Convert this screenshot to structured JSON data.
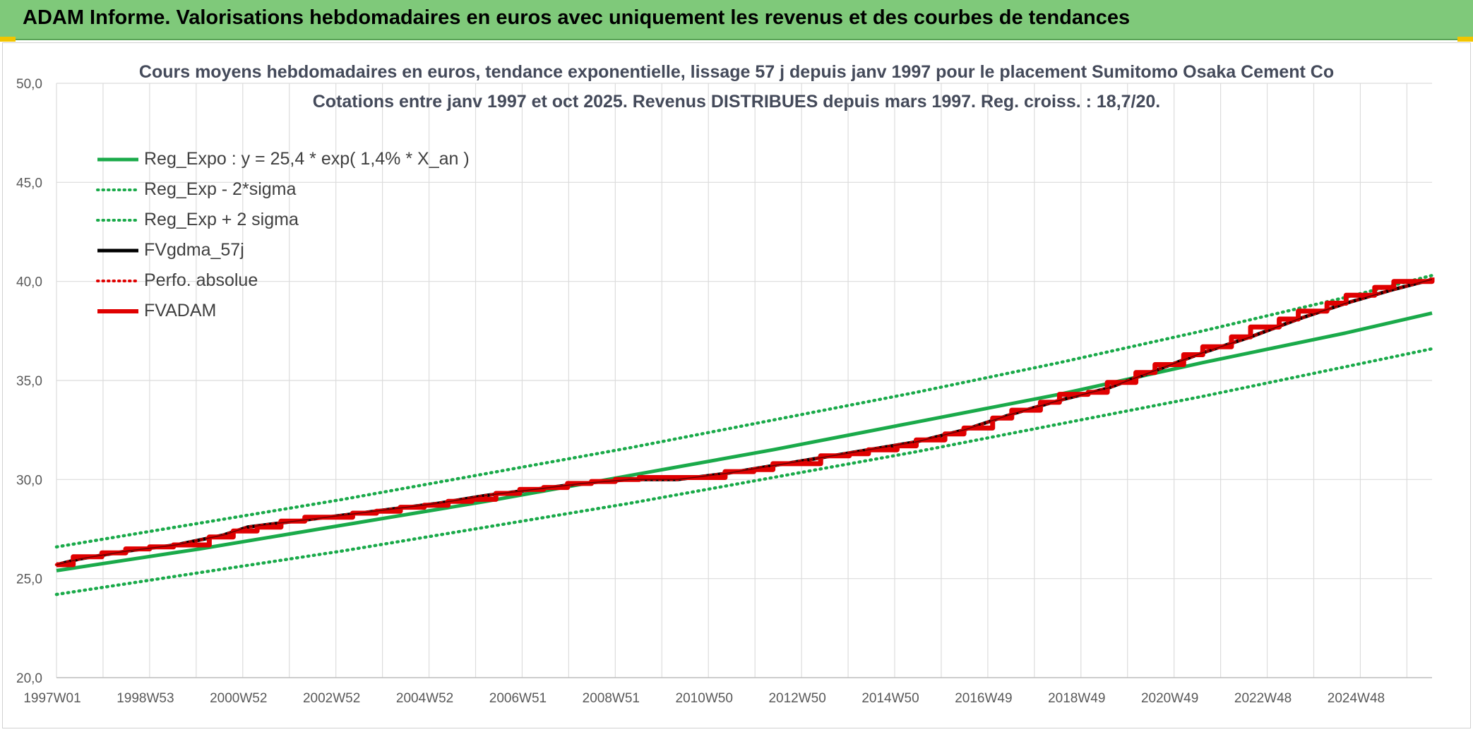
{
  "banner": {
    "title": "ADAM Informe. Valorisations hebdomadaires en euros avec uniquement les revenus et des courbes de tendances"
  },
  "chart_data": {
    "type": "line",
    "title": "Cours moyens hebdomadaires en euros, tendance exponentielle, lissage 57 j depuis janv 1997 pour le placement Sumitomo Osaka Cement Co",
    "subtitle": "Cotations entre janv 1997 et oct 2025. Revenus DISTRIBUES depuis mars 1997. Reg. croiss. : 18,7/20.",
    "xlabel": "",
    "ylabel": "",
    "x_tick_labels": [
      "1997W01",
      "1998W53",
      "2000W52",
      "2002W52",
      "2004W52",
      "2006W51",
      "2008W51",
      "2010W50",
      "2012W50",
      "2014W50",
      "2016W49",
      "2018W49",
      "2020W49",
      "2022W48",
      "2024W48"
    ],
    "x_range_years": [
      1997.0,
      2025.8
    ],
    "y_ticks": [
      "20,0",
      "25,0",
      "30,0",
      "35,0",
      "40,0",
      "45,0",
      "50,0"
    ],
    "ylim": [
      20,
      50
    ],
    "grid": true,
    "legend_position": "top-left",
    "series": [
      {
        "name": "Reg_Expo : y = 25,4 * exp( 1,4% *  X_an )",
        "color": "#1aaa4a",
        "style": "solid",
        "x": [
          1997.0,
          2000.0,
          2003.0,
          2006.0,
          2009.0,
          2012.0,
          2015.0,
          2018.0,
          2021.0,
          2024.0,
          2025.8
        ],
        "values": [
          25.4,
          26.5,
          27.7,
          28.9,
          30.2,
          31.5,
          32.9,
          34.3,
          35.9,
          37.4,
          38.4
        ]
      },
      {
        "name": "Reg_Exp - 2*sigma",
        "color": "#1aaa4a",
        "style": "dotted",
        "x": [
          1997.0,
          2000.0,
          2003.0,
          2006.0,
          2009.0,
          2012.0,
          2015.0,
          2018.0,
          2021.0,
          2024.0,
          2025.8
        ],
        "values": [
          24.2,
          25.3,
          26.4,
          27.6,
          28.8,
          30.1,
          31.4,
          32.8,
          34.2,
          35.7,
          36.6
        ]
      },
      {
        "name": "Reg_Exp + 2 sigma",
        "color": "#1aaa4a",
        "style": "dotted",
        "x": [
          1997.0,
          2000.0,
          2003.0,
          2006.0,
          2009.0,
          2012.0,
          2015.0,
          2018.0,
          2021.0,
          2024.0,
          2025.8
        ],
        "values": [
          26.6,
          27.8,
          29.0,
          30.3,
          31.6,
          33.0,
          34.4,
          35.9,
          37.5,
          39.2,
          40.3
        ]
      },
      {
        "name": "FVgdma_57j",
        "color": "#000000",
        "style": "solid",
        "x": [
          1997.0,
          1997.5,
          1998.5,
          1999.5,
          2000.5,
          2001.0,
          2002.0,
          2003.0,
          2004.0,
          2005.0,
          2006.0,
          2007.0,
          2008.0,
          2009.0,
          2010.0,
          2011.0,
          2012.0,
          2013.0,
          2014.0,
          2015.0,
          2016.0,
          2017.0,
          2018.0,
          2019.0,
          2020.0,
          2021.0,
          2022.0,
          2023.0,
          2024.0,
          2025.0,
          2025.8
        ],
        "values": [
          25.7,
          26.0,
          26.4,
          26.7,
          27.2,
          27.6,
          27.9,
          28.2,
          28.5,
          28.8,
          29.2,
          29.5,
          29.8,
          30.0,
          30.0,
          30.3,
          30.7,
          31.1,
          31.5,
          31.9,
          32.5,
          33.3,
          34.0,
          34.6,
          35.5,
          36.4,
          37.2,
          38.1,
          38.9,
          39.6,
          40.1
        ]
      },
      {
        "name": "Perfo. absolue",
        "color": "#e00000",
        "style": "dotted",
        "x": [
          1997.0,
          1997.5,
          1998.5,
          1999.5,
          2000.5,
          2001.0,
          2002.0,
          2003.0,
          2004.0,
          2005.0,
          2006.0,
          2007.0,
          2008.0,
          2009.0,
          2010.0,
          2011.0,
          2012.0,
          2013.0,
          2014.0,
          2015.0,
          2016.0,
          2017.0,
          2018.0,
          2019.0,
          2020.0,
          2021.0,
          2022.0,
          2023.0,
          2024.0,
          2025.0,
          2025.8
        ],
        "values": [
          25.7,
          26.0,
          26.4,
          26.7,
          27.2,
          27.6,
          27.9,
          28.2,
          28.5,
          28.8,
          29.2,
          29.5,
          29.8,
          30.0,
          30.0,
          30.3,
          30.7,
          31.1,
          31.5,
          31.9,
          32.5,
          33.3,
          34.0,
          34.6,
          35.5,
          36.4,
          37.2,
          38.1,
          38.9,
          39.6,
          40.1
        ]
      },
      {
        "name": "FVADAM",
        "color": "#e00000",
        "style": "solid-thick",
        "steps": [
          [
            1997.0,
            25.7
          ],
          [
            1997.35,
            26.1
          ],
          [
            1997.95,
            26.3
          ],
          [
            1998.45,
            26.5
          ],
          [
            1998.95,
            26.6
          ],
          [
            1999.45,
            26.7
          ],
          [
            2000.05,
            26.7
          ],
          [
            2000.2,
            27.1
          ],
          [
            2000.7,
            27.4
          ],
          [
            2001.2,
            27.6
          ],
          [
            2001.7,
            27.9
          ],
          [
            2002.2,
            28.1
          ],
          [
            2002.7,
            28.1
          ],
          [
            2003.2,
            28.3
          ],
          [
            2003.7,
            28.4
          ],
          [
            2004.2,
            28.6
          ],
          [
            2004.7,
            28.7
          ],
          [
            2005.2,
            28.9
          ],
          [
            2005.7,
            29.0
          ],
          [
            2006.2,
            29.3
          ],
          [
            2006.7,
            29.5
          ],
          [
            2007.2,
            29.6
          ],
          [
            2007.7,
            29.8
          ],
          [
            2008.2,
            29.9
          ],
          [
            2008.7,
            30.0
          ],
          [
            2009.2,
            30.1
          ],
          [
            2009.7,
            30.1
          ],
          [
            2010.2,
            30.1
          ],
          [
            2010.7,
            30.1
          ],
          [
            2011.0,
            30.4
          ],
          [
            2011.6,
            30.5
          ],
          [
            2012.0,
            30.8
          ],
          [
            2012.6,
            30.8
          ],
          [
            2013.0,
            31.2
          ],
          [
            2013.6,
            31.3
          ],
          [
            2014.0,
            31.5
          ],
          [
            2014.6,
            31.7
          ],
          [
            2015.0,
            32.0
          ],
          [
            2015.6,
            32.3
          ],
          [
            2016.0,
            32.6
          ],
          [
            2016.6,
            33.1
          ],
          [
            2017.0,
            33.5
          ],
          [
            2017.6,
            33.9
          ],
          [
            2018.0,
            34.3
          ],
          [
            2018.6,
            34.4
          ],
          [
            2019.0,
            34.9
          ],
          [
            2019.6,
            35.4
          ],
          [
            2020.0,
            35.8
          ],
          [
            2020.6,
            36.3
          ],
          [
            2021.0,
            36.7
          ],
          [
            2021.6,
            37.2
          ],
          [
            2022.0,
            37.7
          ],
          [
            2022.6,
            38.1
          ],
          [
            2023.0,
            38.5
          ],
          [
            2023.6,
            38.9
          ],
          [
            2024.0,
            39.3
          ],
          [
            2024.6,
            39.7
          ],
          [
            2025.0,
            40.0
          ],
          [
            2025.8,
            40.2
          ]
        ]
      }
    ]
  }
}
